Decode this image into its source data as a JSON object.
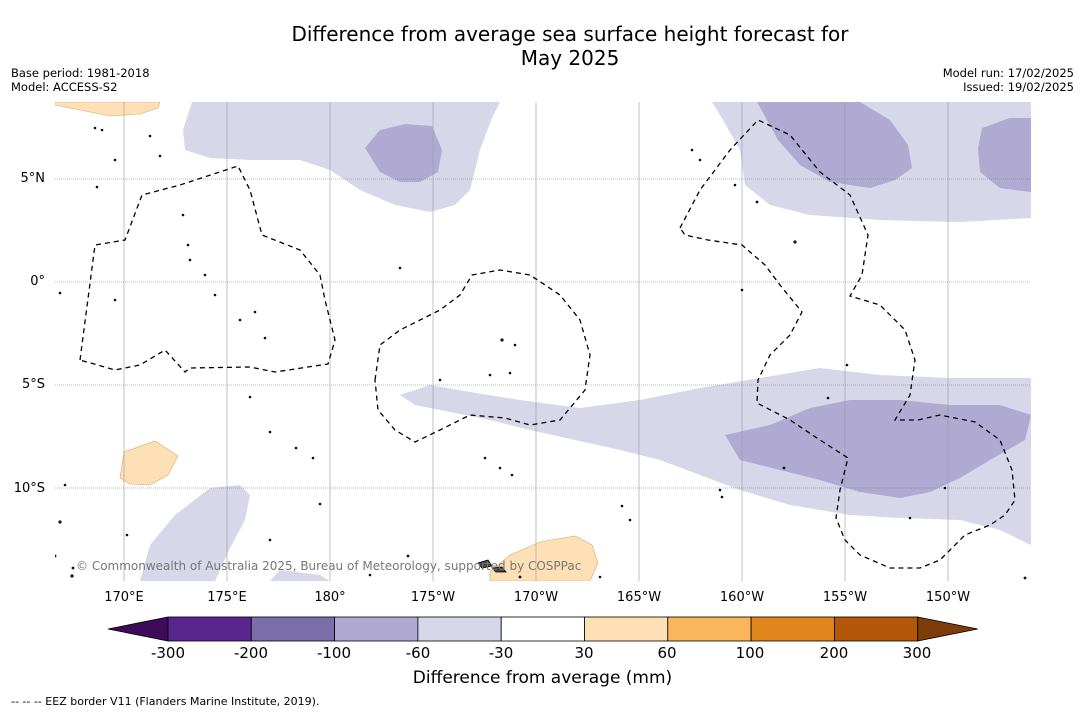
{
  "title": {
    "line1": "Difference from average sea surface height forecast for",
    "line2": "May 2025"
  },
  "meta_left": {
    "base_period": "Base period: 1981-2018",
    "model": "Model: ACCESS-S2"
  },
  "meta_right": {
    "model_run": "Model run: 17/02/2025",
    "issued": "Issued: 19/02/2025"
  },
  "map": {
    "lat_labels": [
      "5°N",
      "0°",
      "5°S",
      "10°S"
    ],
    "lon_labels": [
      "170°E",
      "175°E",
      "180°",
      "175°W",
      "170°W",
      "165°W",
      "160°W",
      "155°W",
      "150°W"
    ],
    "copyright": "© Commonwealth of Australia 2025, Bureau of Meteorology, supported by COSPPac"
  },
  "colorbar": {
    "ticks": [
      "-300",
      "-200",
      "-100",
      "-60",
      "-30",
      "30",
      "60",
      "100",
      "200",
      "300"
    ],
    "colors": [
      "#3f0a5a",
      "#58268c",
      "#7b6eab",
      "#b0a9d1",
      "#d7d7ea",
      "#ffffff",
      "#fde0b5",
      "#fbb55b",
      "#e0861c",
      "#b35808",
      "#7f3b08"
    ],
    "title": "Difference from average (mm)"
  },
  "footnote": "--  --  -- EEZ border V11 (Flanders Marine Institute, 2019)."
}
